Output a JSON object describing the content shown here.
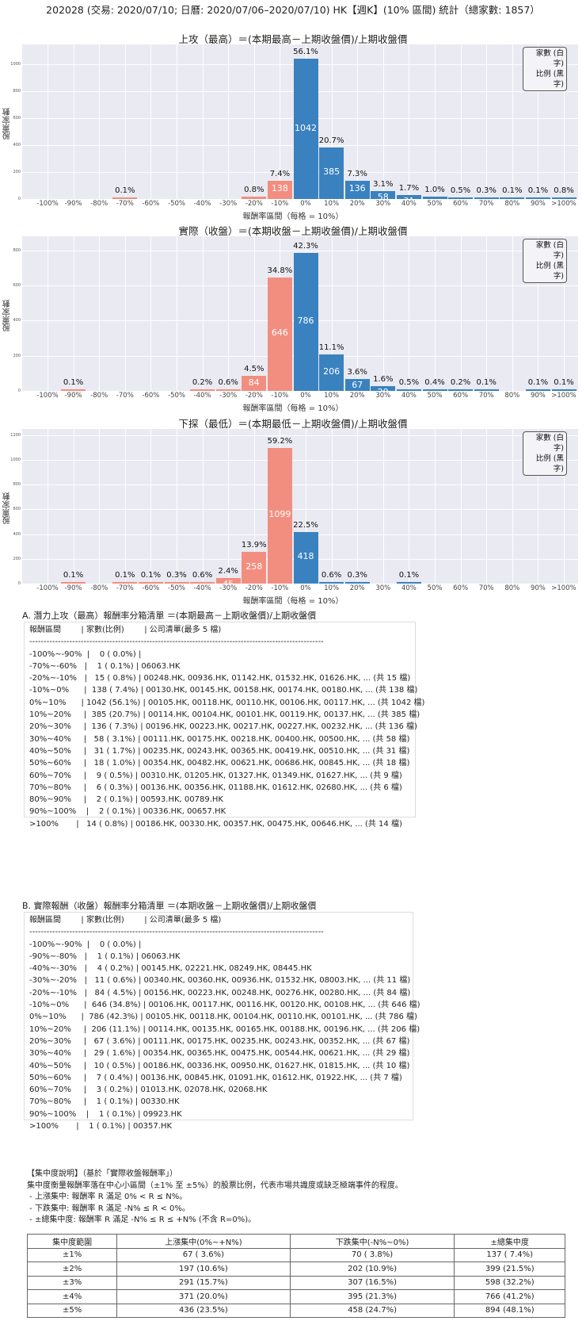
{
  "header": {
    "title": "202028 (交易: 2020/07/10; 日曆: 2020/07/06–2020/07/10) HK【週K】(10% 區間) 統計（總家數: 1857）"
  },
  "common": {
    "ylabel": "股票家數",
    "xlabel": "報酬率區間（每格 = 10%）",
    "legend_line1": "家數 (白字)",
    "legend_line2": "比例 (黑字)",
    "categories": [
      "-100%",
      "-90%",
      "-80%",
      "-70%",
      "-60%",
      "-50%",
      "-40%",
      "-30%",
      "-20%",
      "-10%",
      "0%",
      "10%",
      "20%",
      "30%",
      "40%",
      "50%",
      "60%",
      "70%",
      "80%",
      "90%",
      ">100%"
    ],
    "colors": {
      "negative": "#f28e80",
      "positive": "#3a82bf",
      "plot_bg": "#eaeaf2"
    }
  },
  "chart_data": [
    {
      "type": "bar",
      "title": "上攻（最高）＝(本期最高－上期收盤價)/上期收盤價",
      "xlabel": "報酬率區間（每格 = 10%）",
      "ylabel": "股票家數",
      "ylim": [
        0,
        1150
      ],
      "yticks": [
        0,
        200,
        400,
        600,
        800,
        1000
      ],
      "grid": true,
      "legend_position": "upper right",
      "categories": [
        "-100%",
        "-90%",
        "-80%",
        "-70%",
        "-60%",
        "-50%",
        "-40%",
        "-30%",
        "-20%",
        "-10%",
        "0%",
        "10%",
        "20%",
        "30%",
        "40%",
        "50%",
        "60%",
        "70%",
        "80%",
        "90%",
        ">100%"
      ],
      "values": [
        0,
        0,
        0,
        1,
        0,
        0,
        0,
        0,
        15,
        138,
        1042,
        385,
        136,
        58,
        31,
        18,
        9,
        6,
        2,
        2,
        14
      ],
      "percent_labels": [
        "",
        "",
        "",
        "0.1%",
        "",
        "",
        "",
        "",
        "0.8%",
        "7.4%",
        "56.1%",
        "20.7%",
        "7.3%",
        "3.1%",
        "1.7%",
        "1.0%",
        "0.5%",
        "0.3%",
        "0.1%",
        "0.1%",
        "0.8%"
      ]
    },
    {
      "type": "bar",
      "title": "實際（收盤）＝(本期收盤－上期收盤價)/上期收盤價",
      "xlabel": "報酬率區間（每格 = 10%）",
      "ylabel": "股票家數",
      "ylim": [
        0,
        880
      ],
      "yticks": [
        0,
        200,
        400,
        600,
        800
      ],
      "grid": true,
      "legend_position": "upper right",
      "categories": [
        "-100%",
        "-90%",
        "-80%",
        "-70%",
        "-60%",
        "-50%",
        "-40%",
        "-30%",
        "-20%",
        "-10%",
        "0%",
        "10%",
        "20%",
        "30%",
        "40%",
        "50%",
        "60%",
        "70%",
        "80%",
        "90%",
        ">100%"
      ],
      "values": [
        0,
        1,
        0,
        0,
        0,
        0,
        4,
        11,
        84,
        646,
        786,
        206,
        67,
        29,
        10,
        7,
        3,
        1,
        0,
        1,
        1
      ],
      "percent_labels": [
        "",
        "0.1%",
        "",
        "",
        "",
        "",
        "0.2%",
        "0.6%",
        "4.5%",
        "34.8%",
        "42.3%",
        "11.1%",
        "3.6%",
        "1.6%",
        "0.5%",
        "0.4%",
        "0.2%",
        "0.1%",
        "",
        "0.1%",
        "0.1%"
      ]
    },
    {
      "type": "bar",
      "title": "下探（最低）＝(本期最低－上期收盤價)/上期收盤價",
      "xlabel": "報酬率區間（每格 = 10%）",
      "ylabel": "股票家數",
      "ylim": [
        0,
        1250
      ],
      "yticks": [
        0,
        200,
        400,
        600,
        800,
        1000,
        1200
      ],
      "grid": true,
      "legend_position": "upper right",
      "categories": [
        "-100%",
        "-90%",
        "-80%",
        "-70%",
        "-60%",
        "-50%",
        "-40%",
        "-30%",
        "-20%",
        "-10%",
        "0%",
        "10%",
        "20%",
        "30%",
        "40%",
        "50%",
        "60%",
        "70%",
        "80%",
        "90%",
        ">100%"
      ],
      "values": [
        0,
        1,
        0,
        1,
        1,
        5,
        12,
        45,
        258,
        1099,
        418,
        11,
        5,
        0,
        1,
        0,
        0,
        0,
        0,
        0,
        0
      ],
      "percent_labels": [
        "",
        "0.1%",
        "",
        "0.1%",
        "0.1%",
        "0.3%",
        "0.6%",
        "2.4%",
        "13.9%",
        "59.2%",
        "22.5%",
        "0.6%",
        "0.3%",
        "",
        "0.1%",
        "",
        "",
        "",
        "",
        "",
        ""
      ]
    }
  ],
  "list_a": {
    "title": "A. 潛力上攻（最高）報酬率分箱清單 ＝(本期最高－上期收盤價)/上期收盤價",
    "header": "報酬區間        | 家數(比例)        | 公司清單(最多 5 檔)",
    "separator": "-------------------------------------------------------------------------------------------------------",
    "rows": [
      "-100%~-90%  |    0 ( 0.0%) |",
      "-70%~-60%   |    1 ( 0.1%) | 06063.HK",
      "-20%~-10%   |   15 ( 0.8%) | 00248.HK, 00936.HK, 01142.HK, 01532.HK, 01626.HK, ... (共 15 檔)",
      "-10%~0%      |  138 ( 7.4%) | 00130.HK, 00145.HK, 00158.HK, 00174.HK, 00180.HK, ... (共 138 檔)",
      "0%~10%      | 1042 (56.1%) | 00105.HK, 00118.HK, 00110.HK, 00106.HK, 00117.HK, ... (共 1042 檔)",
      "10%~20%     |  385 (20.7%) | 00114.HK, 00104.HK, 00101.HK, 00119.HK, 00137.HK, ... (共 385 檔)",
      "20%~30%     |  136 ( 7.3%) | 00196.HK, 00223.HK, 00217.HK, 00227.HK, 00232.HK, ... (共 136 檔)",
      "30%~40%     |   58 ( 3.1%) | 00111.HK, 00175.HK, 00218.HK, 00400.HK, 00500.HK, ... (共 58 檔)",
      "40%~50%     |   31 ( 1.7%) | 00235.HK, 00243.HK, 00365.HK, 00419.HK, 00510.HK, ... (共 31 檔)",
      "50%~60%     |   18 ( 1.0%) | 00354.HK, 00482.HK, 00621.HK, 00686.HK, 00845.HK, ... (共 18 檔)",
      "60%~70%     |    9 ( 0.5%) | 00310.HK, 01205.HK, 01327.HK, 01349.HK, 01627.HK, ... (共 9 檔)",
      "70%~80%     |    6 ( 0.3%) | 00136.HK, 00356.HK, 01188.HK, 01612.HK, 02680.HK, ... (共 6 檔)",
      "80%~90%     |    2 ( 0.1%) | 00593.HK, 00789.HK",
      "90%~100%    |    2 ( 0.1%) | 00336.HK, 00657.HK",
      ">100%       |   14 ( 0.8%) | 00186.HK, 00330.HK, 00357.HK, 00475.HK, 00646.HK, ... (共 14 檔)"
    ]
  },
  "list_b": {
    "title": "B. 實際報酬（收盤）報酬率分箱清單 ＝(本期收盤－上期收盤價)/上期收盤價",
    "header": "報酬區間        | 家數(比例)        | 公司清單(最多 5 檔)",
    "separator": "-------------------------------------------------------------------------------------------------------",
    "rows": [
      "-100%~-90%  |    0 ( 0.0%) |",
      "-90%~-80%   |    1 ( 0.1%) | 06063.HK",
      "-40%~-30%   |    4 ( 0.2%) | 00145.HK, 02221.HK, 08249.HK, 08445.HK",
      "-30%~-20%   |   11 ( 0.6%) | 00340.HK, 00360.HK, 00936.HK, 01532.HK, 08003.HK, ... (共 11 檔)",
      "-20%~-10%   |   84 ( 4.5%) | 00156.HK, 00223.HK, 00248.HK, 00276.HK, 00280.HK, ... (共 84 檔)",
      "-10%~0%      |  646 (34.8%) | 00106.HK, 00117.HK, 00116.HK, 00120.HK, 00108.HK, ... (共 646 檔)",
      "0%~10%      |  786 (42.3%) | 00105.HK, 00118.HK, 00104.HK, 00110.HK, 00101.HK, ... (共 786 檔)",
      "10%~20%     |  206 (11.1%) | 00114.HK, 00135.HK, 00165.HK, 00188.HK, 00196.HK, ... (共 206 檔)",
      "20%~30%     |   67 ( 3.6%) | 00111.HK, 00175.HK, 00235.HK, 00243.HK, 00352.HK, ... (共 67 檔)",
      "30%~40%     |   29 ( 1.6%) | 00354.HK, 00365.HK, 00475.HK, 00544.HK, 00621.HK, ... (共 29 檔)",
      "40%~50%     |   10 ( 0.5%) | 00186.HK, 00336.HK, 00950.HK, 01627.HK, 01815.HK, ... (共 10 檔)",
      "50%~60%     |    7 ( 0.4%) | 00136.HK, 00845.HK, 01091.HK, 01612.HK, 01922.HK, ... (共 7 檔)",
      "60%~70%     |    3 ( 0.2%) | 01013.HK, 02078.HK, 02068.HK",
      "70%~80%     |    1 ( 0.1%) | 00330.HK",
      "90%~100%    |    1 ( 0.1%) | 09923.HK",
      ">100%       |    1 ( 0.1%) | 00357.HK"
    ]
  },
  "concentration": {
    "heading": "【集中度說明】（基於「實際收盤報酬率」）",
    "description": "集中度衡量報酬率落在中心小區間（±1% 至 ±5%）的股票比例，代表市場共識度或缺乏極端事件的程度。",
    "bullets": [
      " - 上漲集中: 報酬率 R 滿足 0% < R ≤ N%。",
      " - 下跌集中: 報酬率 R 滿足 -N% ≤ R < 0%。",
      " - ±總集中度: 報酬率 R 滿足 -N% ≤ R ≤ +N% (不含 R=0%)。"
    ],
    "table": {
      "headers": [
        "集中度範圍",
        "上漲集中(0%~+N%)",
        "下跌集中(-N%~0%)",
        "±總集中度"
      ],
      "rows": [
        [
          "±1%",
          "67 ( 3.6%)",
          "70 ( 3.8%)",
          "137 ( 7.4%)"
        ],
        [
          "±2%",
          "197 (10.6%)",
          "202 (10.9%)",
          "399 (21.5%)"
        ],
        [
          "±3%",
          "291 (15.7%)",
          "307 (16.5%)",
          "598 (32.2%)"
        ],
        [
          "±4%",
          "371 (20.0%)",
          "395 (21.3%)",
          "766 (41.2%)"
        ],
        [
          "±5%",
          "436 (23.5%)",
          "458 (24.7%)",
          "894 (48.1%)"
        ]
      ]
    }
  }
}
